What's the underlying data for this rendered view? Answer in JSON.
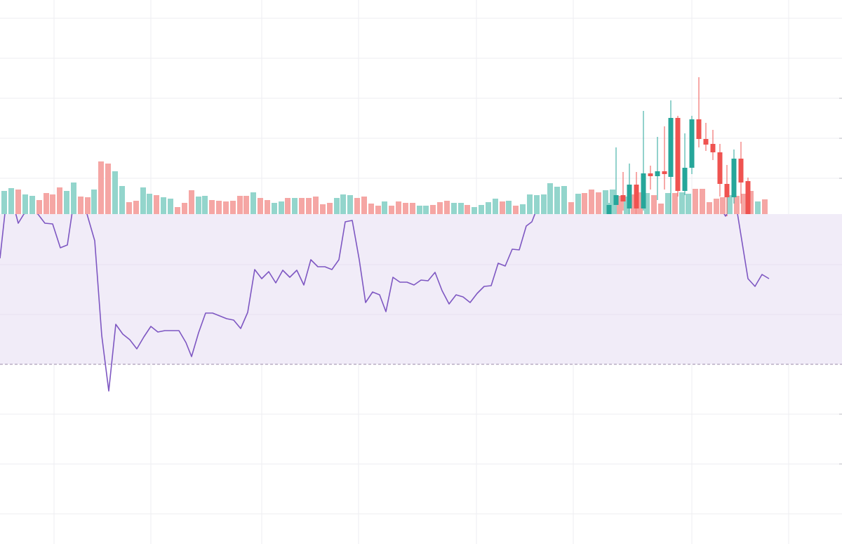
{
  "chart_data": [
    {
      "type": "bar",
      "xlim": [
        0,
        1200
      ],
      "ylim": [
        0,
        100
      ],
      "x": [
        6,
        16,
        26,
        36,
        46,
        56,
        66,
        75,
        85,
        95,
        105,
        115,
        125,
        134,
        144,
        154,
        164,
        174,
        184,
        194,
        204,
        213,
        223,
        233,
        243,
        253,
        263,
        273,
        283,
        292,
        302,
        312,
        322,
        332,
        342,
        351,
        361,
        371,
        381,
        391,
        401,
        410,
        420,
        430,
        440,
        450,
        460,
        470,
        480,
        489,
        499,
        509,
        519,
        529,
        539,
        548,
        558,
        568,
        578,
        588,
        598,
        607,
        617,
        627,
        637,
        647,
        657,
        666,
        676,
        686,
        696,
        706,
        716,
        725,
        735,
        745,
        755,
        765,
        775,
        784,
        794,
        804,
        814,
        824,
        833,
        843,
        853,
        863,
        873,
        883,
        893,
        903,
        912,
        922,
        932,
        942,
        952,
        962,
        972,
        981,
        991,
        1001,
        1011,
        1021,
        1030,
        1040,
        1050,
        1060,
        1070,
        1080,
        1090
      ],
      "values": [
        33,
        37,
        35,
        28,
        26,
        20,
        30,
        28,
        38,
        33,
        45,
        25,
        24,
        35,
        75,
        72,
        61,
        40,
        17,
        19,
        38,
        29,
        27,
        24,
        22,
        10,
        16,
        34,
        25,
        26,
        20,
        19,
        18,
        19,
        26,
        26,
        31,
        23,
        20,
        16,
        18,
        23,
        23,
        23,
        23,
        25,
        14,
        16,
        23,
        28,
        27,
        23,
        25,
        15,
        12,
        18,
        12,
        18,
        16,
        16,
        12,
        12,
        13,
        17,
        19,
        16,
        16,
        13,
        10,
        13,
        17,
        22,
        18,
        19,
        12,
        14,
        28,
        27,
        28,
        44,
        39,
        40,
        17,
        29,
        30,
        35,
        31,
        34,
        35,
        26,
        25,
        28,
        31,
        30,
        27,
        15,
        30,
        30,
        31,
        29,
        36,
        36,
        17,
        22,
        24,
        27,
        26,
        29,
        33,
        18,
        21
      ],
      "colors": [
        "#93d5cc",
        "#93d5cc",
        "#f5a6a4",
        "#93d5cc",
        "#93d5cc",
        "#f5a6a4",
        "#f5a6a4",
        "#f5a6a4",
        "#f5a6a4",
        "#93d5cc",
        "#93d5cc",
        "#f5a6a4",
        "#f5a6a4",
        "#93d5cc",
        "#f5a6a4",
        "#f5a6a4",
        "#93d5cc",
        "#93d5cc",
        "#f5a6a4",
        "#f5a6a4",
        "#93d5cc",
        "#93d5cc",
        "#f5a6a4",
        "#93d5cc",
        "#93d5cc",
        "#f5a6a4",
        "#f5a6a4",
        "#f5a6a4",
        "#93d5cc",
        "#93d5cc",
        "#f5a6a4",
        "#f5a6a4",
        "#f5a6a4",
        "#f5a6a4",
        "#f5a6a4",
        "#f5a6a4",
        "#93d5cc",
        "#f5a6a4",
        "#f5a6a4",
        "#93d5cc",
        "#93d5cc",
        "#f5a6a4",
        "#93d5cc",
        "#f5a6a4",
        "#f5a6a4",
        "#f5a6a4",
        "#f5a6a4",
        "#f5a6a4",
        "#93d5cc",
        "#93d5cc",
        "#93d5cc",
        "#f5a6a4",
        "#f5a6a4",
        "#f5a6a4",
        "#f5a6a4",
        "#93d5cc",
        "#f5a6a4",
        "#f5a6a4",
        "#f5a6a4",
        "#f5a6a4",
        "#93d5cc",
        "#93d5cc",
        "#f5a6a4",
        "#f5a6a4",
        "#f5a6a4",
        "#93d5cc",
        "#93d5cc",
        "#f5a6a4",
        "#93d5cc",
        "#93d5cc",
        "#93d5cc",
        "#93d5cc",
        "#f5a6a4",
        "#93d5cc",
        "#f5a6a4",
        "#93d5cc",
        "#93d5cc",
        "#93d5cc",
        "#93d5cc",
        "#93d5cc",
        "#93d5cc",
        "#93d5cc",
        "#f5a6a4",
        "#93d5cc",
        "#f5a6a4",
        "#f5a6a4",
        "#f5a6a4",
        "#93d5cc",
        "#93d5cc",
        "#f5a6a4",
        "#93d5cc",
        "#f5a6a4",
        "#f5a6a4",
        "#93d5cc",
        "#f5a6a4",
        "#f5a6a4",
        "#93d5cc",
        "#f5a6a4",
        "#93d5cc",
        "#93d5cc",
        "#f5a6a4",
        "#f5a6a4",
        "#f5a6a4",
        "#f5a6a4",
        "#f5a6a4",
        "#93d5cc",
        "#f5a6a4",
        "#f5a6a4",
        "#f5a6a4",
        "#93d5cc",
        "#f5a6a4"
      ]
    },
    {
      "type": "candlestick",
      "xlim": [
        0,
        1200
      ],
      "ylim": [
        0,
        305
      ],
      "up_color": "#26a69a",
      "down_color": "#ef5350",
      "x": [
        868,
        878,
        888,
        897,
        907,
        917,
        927,
        937,
        947,
        956,
        966,
        976,
        986,
        996,
        1006,
        1016,
        1026,
        1036,
        1046,
        1056,
        1066
      ],
      "open": [
        0,
        13,
        27,
        8,
        42,
        8,
        58,
        54,
        61,
        53,
        137,
        33,
        66,
        135,
        107,
        100,
        88,
        43,
        24,
        79,
        47
      ],
      "high": [
        16,
        95,
        60,
        72,
        60,
        147,
        69,
        110,
        125,
        162,
        140,
        115,
        140,
        195,
        130,
        120,
        100,
        70,
        92,
        103,
        52
      ],
      "low": [
        0,
        0,
        5,
        0,
        0,
        5,
        35,
        20,
        35,
        0,
        25,
        27,
        57,
        95,
        90,
        77,
        25,
        -3,
        15,
        15,
        0
      ],
      "close": [
        13,
        27,
        18,
        42,
        8,
        58,
        54,
        61,
        57,
        137,
        33,
        66,
        135,
        107,
        99,
        88,
        43,
        24,
        79,
        45,
        0
      ]
    },
    {
      "type": "line",
      "xlim": [
        0,
        1200
      ],
      "ylim": [
        0,
        775
      ],
      "color": "#7e57c2",
      "band": [
        256,
        470
      ],
      "band_color": "#f1ecf8",
      "x": [
        0,
        8,
        20,
        26,
        34,
        44,
        54,
        64,
        75,
        86,
        96,
        104,
        115,
        124,
        135,
        145,
        155,
        165,
        175,
        185,
        195,
        205,
        215,
        225,
        235,
        245,
        255,
        265,
        273,
        283,
        293,
        303,
        313,
        323,
        333,
        343,
        353,
        363,
        373,
        383,
        393,
        403,
        413,
        423,
        433,
        443,
        453,
        463,
        473,
        483,
        492,
        502,
        512,
        521,
        531,
        541,
        550,
        560,
        570,
        580,
        590,
        600,
        610,
        620,
        630,
        640,
        650,
        660,
        670,
        680,
        690,
        700,
        710,
        720,
        730,
        740,
        750,
        758,
        765,
        900,
        1028,
        1034,
        1040,
        1050,
        1066,
        1076,
        1086,
        1096
      ],
      "values": [
        407,
        480,
        480,
        457,
        470,
        475,
        470,
        457,
        456,
        422,
        426,
        480,
        485,
        470,
        432,
        297,
        218,
        313,
        299,
        291,
        278,
        295,
        310,
        302,
        304,
        304,
        304,
        287,
        267,
        301,
        329,
        329,
        325,
        321,
        319,
        307,
        330,
        391,
        378,
        388,
        372,
        390,
        380,
        390,
        369,
        405,
        395,
        395,
        391,
        405,
        459,
        461,
        405,
        344,
        359,
        355,
        331,
        380,
        373,
        373,
        369,
        376,
        375,
        387,
        361,
        342,
        355,
        352,
        344,
        357,
        367,
        368,
        400,
        396,
        420,
        419,
        453,
        459,
        477,
        null,
        477,
        467,
        477,
        477,
        378,
        367,
        384,
        378
      ]
    }
  ]
}
